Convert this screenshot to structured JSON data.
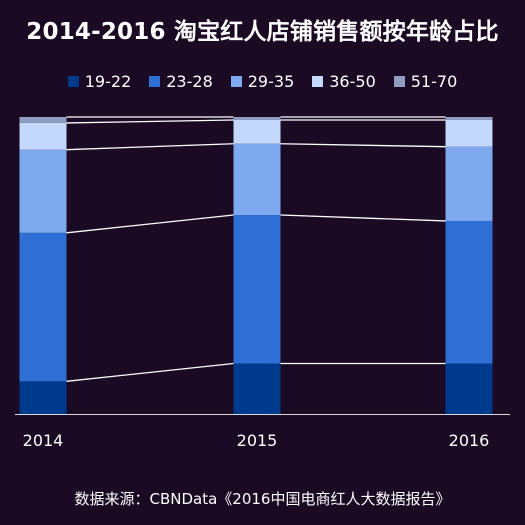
{
  "title": "2014-2016 淘宝红人店铺销售额按年龄占比",
  "source": "数据来源：CBNData《2016中国电商红人大数据报告》",
  "colors": {
    "background": "#1b0a24",
    "connector": "#ffffff",
    "axis": "#d9d9d9"
  },
  "chart_data": {
    "type": "bar",
    "stacked": true,
    "normalized_100_percent": true,
    "connector_lines": true,
    "title": "2014-2016 淘宝红人店铺销售额按年龄占比",
    "categories": [
      "2014",
      "2015",
      "2016"
    ],
    "ylim": [
      0,
      100
    ],
    "grid": false,
    "legend": "top",
    "series": [
      {
        "name": "19-22",
        "color": "#003a8c",
        "values": [
          11,
          17,
          17
        ]
      },
      {
        "name": "23-28",
        "color": "#2e6fd6",
        "values": [
          50,
          50,
          48
        ]
      },
      {
        "name": "29-35",
        "color": "#7fa9ee",
        "values": [
          28,
          24,
          25
        ]
      },
      {
        "name": "36-50",
        "color": "#c3d8fb",
        "values": [
          9,
          8,
          9
        ]
      },
      {
        "name": "51-70",
        "color": "#8e9dc0",
        "values": [
          2,
          1,
          1
        ]
      }
    ]
  }
}
